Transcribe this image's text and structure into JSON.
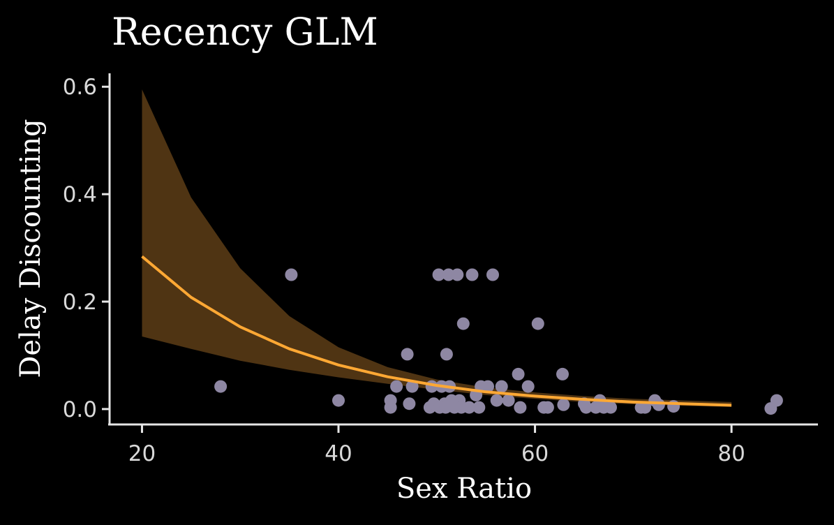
{
  "chart_data": {
    "type": "scatter",
    "title": "Recency GLM",
    "xlabel": "Sex Ratio",
    "ylabel": "Delay Discounting",
    "xlim": [
      16.7,
      88.8
    ],
    "ylim": [
      -0.03,
      0.625
    ],
    "x_ticks": [
      20,
      40,
      60,
      80
    ],
    "x_tick_labels": [
      "20",
      "40",
      "60",
      "80"
    ],
    "y_ticks": [
      0.0,
      0.2,
      0.4,
      0.6
    ],
    "y_tick_labels": [
      "0.0",
      "0.2",
      "0.4",
      "0.6"
    ],
    "grid": false,
    "legend": "none",
    "colors": {
      "background": "#000000",
      "points": "#8e87a3",
      "fit_line": "#ffa834",
      "ribbon": "#4f3413",
      "axis": "#e6e6e6"
    },
    "fit": {
      "x": [
        20,
        25,
        30,
        35,
        40,
        45,
        50,
        55,
        60,
        65,
        70,
        75,
        80
      ],
      "y": [
        0.284,
        0.208,
        0.153,
        0.112,
        0.082,
        0.06,
        0.044,
        0.032,
        0.024,
        0.018,
        0.013,
        0.01,
        0.007
      ],
      "lower": [
        0.135,
        0.112,
        0.09,
        0.073,
        0.059,
        0.047,
        0.036,
        0.026,
        0.019,
        0.013,
        0.009,
        0.006,
        0.004
      ],
      "upper": [
        0.595,
        0.394,
        0.262,
        0.173,
        0.115,
        0.078,
        0.055,
        0.04,
        0.031,
        0.024,
        0.019,
        0.016,
        0.013
      ]
    },
    "points": [
      {
        "x": 28.0,
        "y": 0.042
      },
      {
        "x": 35.2,
        "y": 0.25
      },
      {
        "x": 40.0,
        "y": 0.016
      },
      {
        "x": 45.3,
        "y": 0.016
      },
      {
        "x": 45.3,
        "y": 0.003
      },
      {
        "x": 45.9,
        "y": 0.042
      },
      {
        "x": 47.0,
        "y": 0.102
      },
      {
        "x": 47.2,
        "y": 0.01
      },
      {
        "x": 47.5,
        "y": 0.042
      },
      {
        "x": 49.3,
        "y": 0.003
      },
      {
        "x": 49.5,
        "y": 0.042
      },
      {
        "x": 49.7,
        "y": 0.01
      },
      {
        "x": 50.2,
        "y": 0.25
      },
      {
        "x": 50.3,
        "y": 0.003
      },
      {
        "x": 50.5,
        "y": 0.042
      },
      {
        "x": 50.8,
        "y": 0.01
      },
      {
        "x": 50.9,
        "y": 0.003
      },
      {
        "x": 51.0,
        "y": 0.102
      },
      {
        "x": 51.2,
        "y": 0.25
      },
      {
        "x": 51.3,
        "y": 0.042
      },
      {
        "x": 51.5,
        "y": 0.016
      },
      {
        "x": 51.8,
        "y": 0.003
      },
      {
        "x": 52.1,
        "y": 0.25
      },
      {
        "x": 52.3,
        "y": 0.016
      },
      {
        "x": 52.5,
        "y": 0.003
      },
      {
        "x": 52.7,
        "y": 0.159
      },
      {
        "x": 53.3,
        "y": 0.003
      },
      {
        "x": 53.6,
        "y": 0.25
      },
      {
        "x": 54.0,
        "y": 0.026
      },
      {
        "x": 54.3,
        "y": 0.003
      },
      {
        "x": 54.5,
        "y": 0.042
      },
      {
        "x": 55.2,
        "y": 0.042
      },
      {
        "x": 55.7,
        "y": 0.25
      },
      {
        "x": 56.1,
        "y": 0.016
      },
      {
        "x": 56.6,
        "y": 0.042
      },
      {
        "x": 57.3,
        "y": 0.016
      },
      {
        "x": 58.3,
        "y": 0.065
      },
      {
        "x": 58.5,
        "y": 0.003
      },
      {
        "x": 59.3,
        "y": 0.042
      },
      {
        "x": 60.3,
        "y": 0.159
      },
      {
        "x": 60.9,
        "y": 0.003
      },
      {
        "x": 61.3,
        "y": 0.003
      },
      {
        "x": 62.8,
        "y": 0.065
      },
      {
        "x": 62.9,
        "y": 0.008
      },
      {
        "x": 65.0,
        "y": 0.01
      },
      {
        "x": 65.2,
        "y": 0.003
      },
      {
        "x": 66.2,
        "y": 0.003
      },
      {
        "x": 66.6,
        "y": 0.016
      },
      {
        "x": 67.0,
        "y": 0.003
      },
      {
        "x": 67.7,
        "y": 0.003
      },
      {
        "x": 70.8,
        "y": 0.003
      },
      {
        "x": 71.2,
        "y": 0.003
      },
      {
        "x": 72.2,
        "y": 0.016
      },
      {
        "x": 72.6,
        "y": 0.008
      },
      {
        "x": 74.1,
        "y": 0.005
      },
      {
        "x": 84.0,
        "y": 0.001
      },
      {
        "x": 84.6,
        "y": 0.016
      }
    ]
  }
}
